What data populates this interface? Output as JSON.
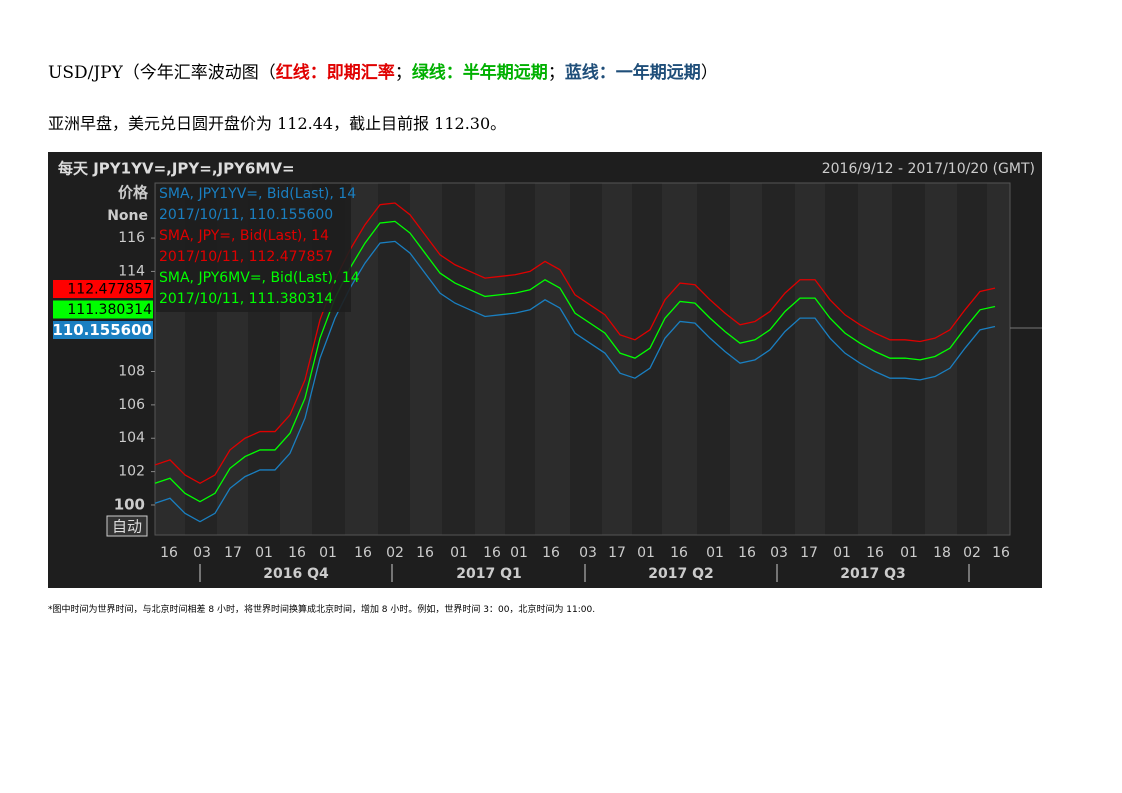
{
  "heading": {
    "segments": [
      {
        "text": "USD/JPY（今年汇率波动图（",
        "color": "#000000"
      },
      {
        "text": "红线：即期汇率",
        "color": "#e00000"
      },
      {
        "text": "；",
        "color": "#000000"
      },
      {
        "text": "绿线：半年期远期",
        "color": "#00b000"
      },
      {
        "text": "；",
        "color": "#000000"
      },
      {
        "text": "蓝线：一年期远期",
        "color": "#1f4e79"
      },
      {
        "text": "）",
        "color": "#000000"
      }
    ]
  },
  "paragraph": "亚洲早盘，美元兑日圆开盘价为 112.44，截止目前报 112.30。",
  "chart": {
    "type": "line",
    "title": "每天 JPY1YV=,JPY=,JPY6MV=",
    "date_range": "2016/9/12 - 2017/10/20 (GMT)",
    "y_header": "价格",
    "y_scale": "None",
    "auto_button": "自动",
    "ylim": [
      98.2,
      119.3
    ],
    "yticks": [
      100,
      102,
      104,
      106,
      108,
      114,
      116
    ],
    "legend": [
      {
        "text": "SMA, JPY1YV=, Bid(Last),  14",
        "color": "#1a7fc1"
      },
      {
        "text": "2017/10/11, 110.155600",
        "color": "#1a7fc1"
      },
      {
        "text": "SMA, JPY=, Bid(Last),  14",
        "color": "#e00000"
      },
      {
        "text": "2017/10/11, 112.477857",
        "color": "#e00000"
      },
      {
        "text": "SMA, JPY6MV=, Bid(Last),  14",
        "color": "#00ff00"
      },
      {
        "text": "2017/10/11, 111.380314",
        "color": "#00ff00"
      }
    ],
    "price_badges": [
      {
        "text": "112.477857",
        "color": "#ff0000",
        "text_color": "#000000"
      },
      {
        "text": "111.380314",
        "color": "#00ff00",
        "text_color": "#000000"
      },
      {
        "text": "110.155600",
        "color": "#1a7fc1",
        "text_color": "#ffffff"
      }
    ],
    "x_tick_labels": [
      "16",
      "03",
      "17",
      "01",
      "16",
      "01",
      "16",
      "02",
      "16",
      "01",
      "16",
      "01",
      "16",
      "03",
      "17",
      "01",
      "16",
      "01",
      "16",
      "03",
      "17",
      "01",
      "16",
      "01",
      "18",
      "02",
      "16"
    ],
    "quarters": [
      "2016 Q4",
      "2017 Q1",
      "2017 Q2",
      "2017 Q3"
    ],
    "series": [
      {
        "name": "JPY=",
        "color": "#e00000",
        "values": [
          102.4,
          102.7,
          101.8,
          101.3,
          101.8,
          103.3,
          104.0,
          104.4,
          104.4,
          105.4,
          107.5,
          111.1,
          113.5,
          115.3,
          116.8,
          118.0,
          118.1,
          117.4,
          116.2,
          115.0,
          114.4,
          114.0,
          113.6,
          113.7,
          113.8,
          114.0,
          114.6,
          114.1,
          112.6,
          112.0,
          111.4,
          110.2,
          109.9,
          110.5,
          112.3,
          113.3,
          113.2,
          112.3,
          111.5,
          110.8,
          111.0,
          111.6,
          112.7,
          113.5,
          113.5,
          112.3,
          111.4,
          110.8,
          110.3,
          109.9,
          109.9,
          109.8,
          110.0,
          110.5,
          111.7,
          112.8,
          113.0
        ]
      },
      {
        "name": "JPY6MV=",
        "color": "#00ff00",
        "values": [
          101.3,
          101.6,
          100.7,
          100.2,
          100.7,
          102.2,
          102.9,
          103.3,
          103.3,
          104.3,
          106.4,
          110.0,
          112.4,
          114.2,
          115.7,
          116.9,
          117.0,
          116.3,
          115.1,
          113.9,
          113.3,
          112.9,
          112.5,
          112.6,
          112.7,
          112.9,
          113.5,
          113.0,
          111.5,
          110.9,
          110.3,
          109.1,
          108.8,
          109.4,
          111.2,
          112.2,
          112.1,
          111.2,
          110.4,
          109.7,
          109.9,
          110.5,
          111.6,
          112.4,
          112.4,
          111.2,
          110.3,
          109.7,
          109.2,
          108.8,
          108.8,
          108.7,
          108.9,
          109.4,
          110.6,
          111.7,
          111.9
        ]
      },
      {
        "name": "JPY1YV=",
        "color": "#1a7fc1",
        "values": [
          100.1,
          100.4,
          99.5,
          99.0,
          99.5,
          101.0,
          101.7,
          102.1,
          102.1,
          103.1,
          105.2,
          108.8,
          111.2,
          113.0,
          114.5,
          115.7,
          115.8,
          115.1,
          113.9,
          112.7,
          112.1,
          111.7,
          111.3,
          111.4,
          111.5,
          111.7,
          112.3,
          111.8,
          110.3,
          109.7,
          109.1,
          107.9,
          107.6,
          108.2,
          110.0,
          111.0,
          110.9,
          110.0,
          109.2,
          108.5,
          108.7,
          109.3,
          110.4,
          111.2,
          111.2,
          110.0,
          109.1,
          108.5,
          108.0,
          107.6,
          107.6,
          107.5,
          107.7,
          108.2,
          109.4,
          110.5,
          110.7
        ]
      }
    ]
  },
  "footnote": "*图中时间为世界时间，与北京时间相差 8 小时，将世界时间换算成北京时间，增加 8 小时。例如，世界时间 3：00，北京时间为 11:00."
}
